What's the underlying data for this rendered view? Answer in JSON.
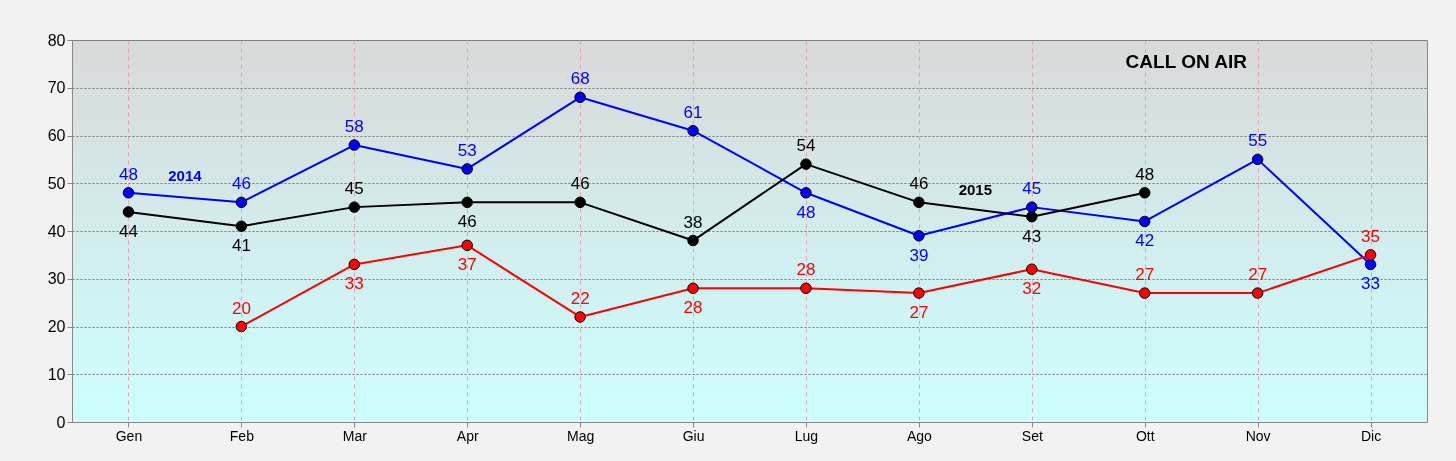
{
  "chart_data": {
    "type": "line",
    "title": "CALL ON AIR",
    "categories": [
      "Gen",
      "Feb",
      "Mar",
      "Apr",
      "Mag",
      "Giu",
      "Lug",
      "Ago",
      "Set",
      "Ott",
      "Nov",
      "Dic"
    ],
    "series": [
      {
        "name": "2014",
        "color": "#0000ff",
        "values": [
          48,
          46,
          58,
          53,
          68,
          61,
          48,
          39,
          45,
          42,
          55,
          33
        ]
      },
      {
        "name": "2015",
        "color": "#000000",
        "values": [
          44,
          41,
          45,
          46,
          46,
          38,
          54,
          46,
          43,
          48,
          null,
          null
        ]
      },
      {
        "color": "#ff0000",
        "values": [
          null,
          20,
          33,
          37,
          22,
          28,
          28,
          27,
          32,
          27,
          27,
          35
        ]
      }
    ],
    "ylim": [
      0,
      80
    ],
    "yticks": [
      0,
      10,
      20,
      30,
      40,
      50,
      60,
      70,
      80
    ],
    "grid": true,
    "legend": false,
    "marker": "circle",
    "line_style": "solid",
    "data_labels": true
  }
}
